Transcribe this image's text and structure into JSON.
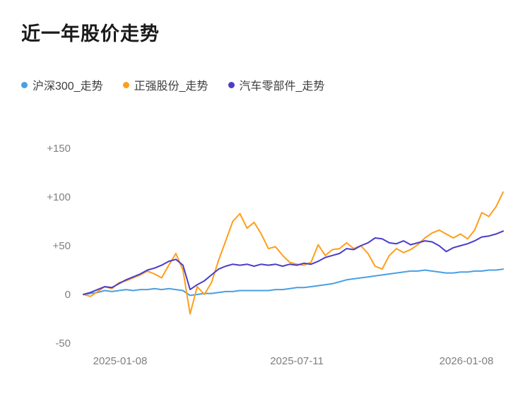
{
  "page": {
    "background": "#ffffff"
  },
  "chart_data": {
    "type": "line",
    "title": "近一年股价走势",
    "grid": false,
    "legend_position": "top-left",
    "ylim": [
      -50,
      150
    ],
    "y_ticks": [
      150,
      100,
      50,
      0,
      -50
    ],
    "y_tick_labels": [
      "+150",
      "+100",
      "+50",
      "0",
      "-50"
    ],
    "x_tick_labels": [
      "2025-01-08",
      "2025-07-11",
      "2026-01-08"
    ],
    "x_range_note": "values sampled at 60 evenly spaced points from 2025-01-08 to 2026-01-08",
    "series": [
      {
        "name": "沪深300_走势",
        "color": "#4A9FE2",
        "values": [
          0,
          1,
          2,
          4,
          3,
          4,
          5,
          4,
          5,
          5,
          6,
          5,
          6,
          5,
          4,
          -1,
          0,
          1,
          1,
          2,
          3,
          3,
          4,
          4,
          4,
          4,
          4,
          5,
          5,
          6,
          7,
          7,
          8,
          9,
          10,
          11,
          13,
          15,
          16,
          17,
          18,
          19,
          20,
          21,
          22,
          23,
          24,
          24,
          25,
          24,
          23,
          22,
          22,
          23,
          23,
          24,
          24,
          25,
          25,
          26
        ]
      },
      {
        "name": "正强股份_走势",
        "color": "#FF9E1B",
        "values": [
          0,
          -2,
          3,
          8,
          6,
          12,
          14,
          17,
          20,
          24,
          21,
          17,
          30,
          42,
          25,
          -20,
          8,
          0,
          12,
          35,
          55,
          75,
          83,
          68,
          74,
          62,
          47,
          49,
          40,
          33,
          31,
          30,
          33,
          51,
          40,
          46,
          47,
          53,
          47,
          50,
          42,
          29,
          26,
          40,
          47,
          43,
          46,
          51,
          58,
          63,
          66,
          62,
          58,
          62,
          57,
          66,
          84,
          80,
          90,
          105
        ]
      },
      {
        "name": "汽车零部件_走势",
        "color": "#4B3DC8",
        "values": [
          0,
          2,
          5,
          8,
          7,
          11,
          15,
          18,
          21,
          25,
          27,
          30,
          34,
          36,
          30,
          5,
          10,
          14,
          20,
          26,
          29,
          31,
          30,
          31,
          29,
          31,
          30,
          31,
          29,
          31,
          30,
          32,
          31,
          34,
          38,
          40,
          42,
          47,
          46,
          50,
          53,
          58,
          57,
          53,
          52,
          55,
          51,
          53,
          55,
          54,
          50,
          44,
          48,
          50,
          52,
          55,
          59,
          60,
          62,
          65
        ]
      }
    ]
  }
}
